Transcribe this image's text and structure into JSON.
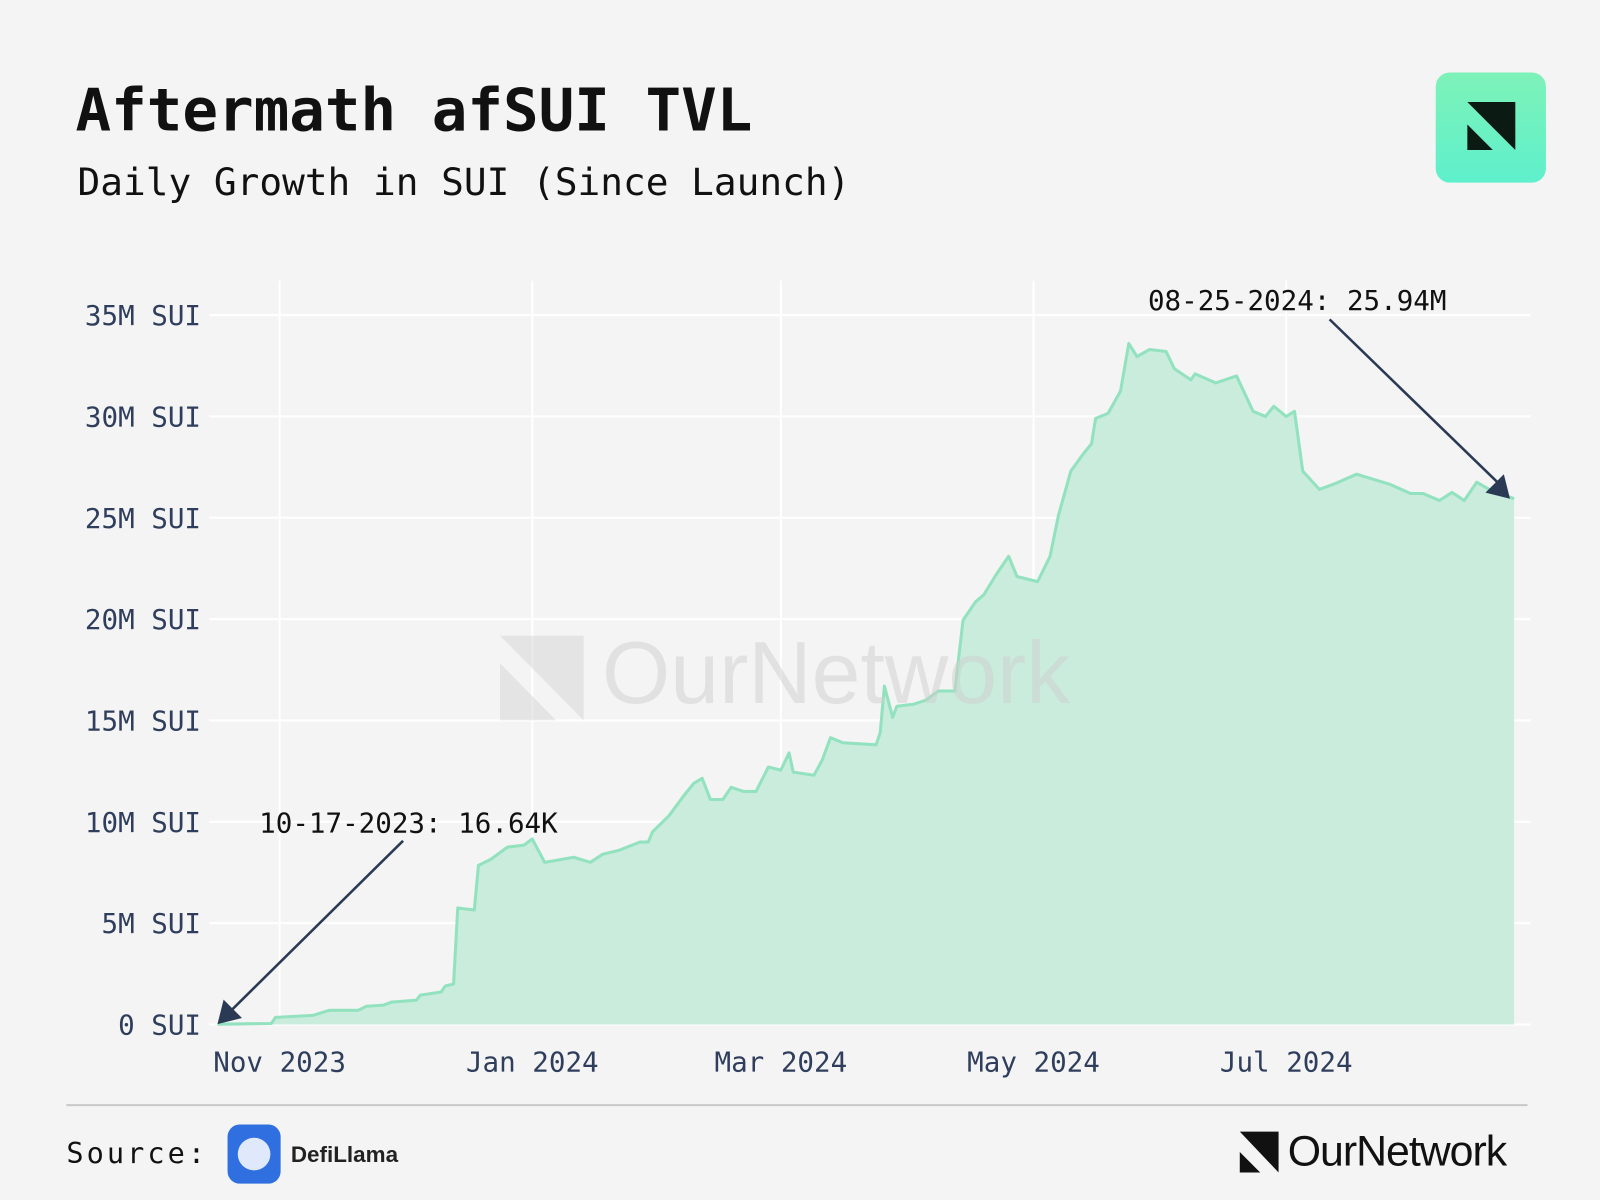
{
  "chart_data": {
    "type": "area",
    "title": "Aftermath afSUI TVL",
    "subtitle": "Daily Growth in SUI (Since Launch)",
    "color": "#93e2bf",
    "fill": "#c9ecdc",
    "grid": true,
    "x": [
      "2023-10-17",
      "2023-10-30",
      "2023-10-31",
      "2023-11-09",
      "2023-11-13",
      "2023-11-20",
      "2023-11-22",
      "2023-11-26",
      "2023-11-28",
      "2023-12-04",
      "2023-12-05",
      "2023-12-10",
      "2023-12-11",
      "2023-12-13",
      "2023-12-14",
      "2023-12-18",
      "2023-12-19",
      "2023-12-22",
      "2023-12-26",
      "2023-12-30",
      "2024-01-01",
      "2024-01-04",
      "2024-01-11",
      "2024-01-15",
      "2024-01-18",
      "2024-01-22",
      "2024-01-27",
      "2024-01-29",
      "2024-01-30",
      "2024-02-03",
      "2024-02-07",
      "2024-02-09",
      "2024-02-11",
      "2024-02-13",
      "2024-02-16",
      "2024-02-18",
      "2024-02-21",
      "2024-02-24",
      "2024-02-27",
      "2024-03-01",
      "2024-03-03",
      "2024-03-04",
      "2024-03-09",
      "2024-03-11",
      "2024-03-13",
      "2024-03-16",
      "2024-03-24",
      "2024-03-25",
      "2024-03-26",
      "2024-03-28",
      "2024-03-29",
      "2024-04-02",
      "2024-04-05",
      "2024-04-08",
      "2024-04-12",
      "2024-04-14",
      "2024-04-17",
      "2024-04-19",
      "2024-04-22",
      "2024-04-25",
      "2024-04-27",
      "2024-05-02",
      "2024-05-05",
      "2024-05-07",
      "2024-05-10",
      "2024-05-13",
      "2024-05-15",
      "2024-05-16",
      "2024-05-19",
      "2024-05-22",
      "2024-05-24",
      "2024-05-26",
      "2024-05-29",
      "2024-06-02",
      "2024-06-04",
      "2024-06-08",
      "2024-06-09",
      "2024-06-14",
      "2024-06-19",
      "2024-06-23",
      "2024-06-26",
      "2024-06-28",
      "2024-07-01",
      "2024-07-03",
      "2024-07-05",
      "2024-07-09",
      "2024-07-13",
      "2024-07-18",
      "2024-07-26",
      "2024-07-31",
      "2024-08-03",
      "2024-08-07",
      "2024-08-10",
      "2024-08-13",
      "2024-08-16",
      "2024-08-19",
      "2024-08-25"
    ],
    "values": [
      16640,
      50000,
      350000,
      450000,
      700000,
      700000,
      900000,
      950000,
      1100000,
      1200000,
      1450000,
      1600000,
      1900000,
      2000000,
      5750000,
      5650000,
      7850000,
      8150000,
      8750000,
      8850000,
      9150000,
      8000000,
      8250000,
      8000000,
      8400000,
      8600000,
      9000000,
      9000000,
      9500000,
      10300000,
      11400000,
      11900000,
      12150000,
      11100000,
      11100000,
      11700000,
      11500000,
      11500000,
      12700000,
      12550000,
      13400000,
      12450000,
      12300000,
      13050000,
      14150000,
      13900000,
      13800000,
      14400000,
      16700000,
      15150000,
      15700000,
      15800000,
      16000000,
      16450000,
      16450000,
      19950000,
      20850000,
      21200000,
      22200000,
      23100000,
      22100000,
      21850000,
      23100000,
      25100000,
      27300000,
      28150000,
      28650000,
      29900000,
      30150000,
      31250000,
      33600000,
      32950000,
      33300000,
      33200000,
      32350000,
      31800000,
      32100000,
      31650000,
      32000000,
      30250000,
      30000000,
      30500000,
      30000000,
      30250000,
      27300000,
      26400000,
      26700000,
      27150000,
      26650000,
      26200000,
      26200000,
      25850000,
      26250000,
      25850000,
      26750000,
      26400000,
      25940000
    ],
    "xlim": [
      "2023-10-15",
      "2024-08-29"
    ],
    "xticks": [
      {
        "value": "2023-11-01",
        "label": "Nov 2023"
      },
      {
        "value": "2024-01-01",
        "label": "Jan 2024"
      },
      {
        "value": "2024-03-01",
        "label": "Mar 2024"
      },
      {
        "value": "2024-05-01",
        "label": "May 2024"
      },
      {
        "value": "2024-07-01",
        "label": "Jul 2024"
      }
    ],
    "ylim": [
      0,
      36700000
    ],
    "yticks": [
      {
        "value": 0,
        "label": "0 SUI"
      },
      {
        "value": 5000000,
        "label": "5M SUI"
      },
      {
        "value": 10000000,
        "label": "10M SUI"
      },
      {
        "value": 15000000,
        "label": "15M SUI"
      },
      {
        "value": 20000000,
        "label": "20M SUI"
      },
      {
        "value": 25000000,
        "label": "25M SUI"
      },
      {
        "value": 30000000,
        "label": "30M SUI"
      },
      {
        "value": 35000000,
        "label": "35M SUI"
      }
    ],
    "annotations": [
      "10-17-2023: 16.64K",
      "08-25-2024: 25.94M"
    ]
  },
  "watermark": "OurNetwork",
  "source_label": "Source:",
  "source_name": "DefiLlama",
  "brand": "OurNetwork"
}
